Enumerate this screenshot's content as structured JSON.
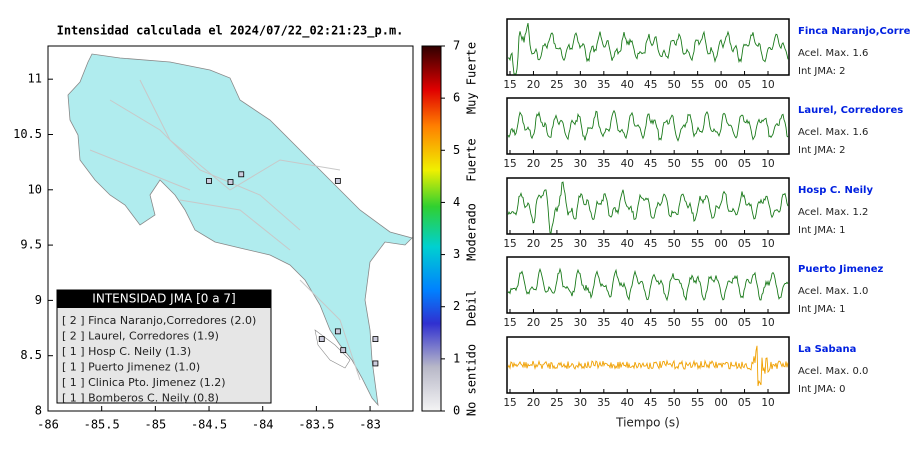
{
  "map": {
    "title": "Intensidad calculada el 2024/07/22_02:21:23_p.m.",
    "xlim": [
      -86,
      -82.6
    ],
    "ylim": [
      8,
      11.3
    ],
    "xticks": [
      -86,
      -85.5,
      -85,
      -84.5,
      -84,
      -83.5,
      -83
    ],
    "yticks": [
      8,
      8.5,
      9,
      9.5,
      10,
      10.5,
      11
    ],
    "stations": [
      {
        "lon": -84.2,
        "lat": 10.14
      },
      {
        "lon": -84.3,
        "lat": 10.07
      },
      {
        "lon": -84.5,
        "lat": 10.08
      },
      {
        "lon": -83.3,
        "lat": 10.08
      },
      {
        "lon": -83.3,
        "lat": 8.72
      },
      {
        "lon": -83.45,
        "lat": 8.65
      },
      {
        "lon": -83.25,
        "lat": 8.55
      },
      {
        "lon": -82.95,
        "lat": 8.65
      },
      {
        "lon": -82.95,
        "lat": 8.43
      }
    ],
    "legend": {
      "title": "INTENSIDAD JMA [0 a 7]",
      "items": [
        "[ 2 ] Finca Naranjo,Corredores (2.0)",
        "[ 2 ] Laurel, Corredores (1.9)",
        "[ 1 ] Hosp C. Neily (1.3)",
        "[ 1 ] Puerto Jimenez (1.0)",
        "[ 1 ] Clinica Pto. Jimenez (1.2)",
        "[ 1 ] Bomberos C. Neily (0.8)"
      ]
    }
  },
  "colorbar": {
    "lim": [
      0,
      7
    ],
    "ticks": [
      0,
      1,
      2,
      3,
      4,
      5,
      6,
      7
    ],
    "classes": [
      "No sentido",
      "Debil",
      "Moderado",
      "Fuerte",
      "Muy Fuerte"
    ]
  },
  "waveforms": {
    "time_labels": [
      "15",
      "20",
      "25",
      "30",
      "35",
      "40",
      "45",
      "50",
      "55",
      "00",
      "05",
      "10"
    ],
    "xlabel": "Tiempo (s)",
    "panels": [
      {
        "name": "Finca Naranjo,Corredores",
        "accel": "Acel. Max. 1.6",
        "int": "Int JMA: 2",
        "color": "#1a7a1a"
      },
      {
        "name": "Laurel, Corredores",
        "accel": "Acel. Max. 1.6",
        "int": "Int JMA: 2",
        "color": "#1a7a1a"
      },
      {
        "name": "Hosp C. Neily",
        "accel": "Acel. Max. 1.2",
        "int": "Int JMA: 1",
        "color": "#1a7a1a"
      },
      {
        "name": "Puerto Jimenez",
        "accel": "Acel. Max. 1.0",
        "int": "Int JMA: 1",
        "color": "#1a7a1a"
      },
      {
        "name": "La Sabana",
        "accel": "Acel. Max. 0.0",
        "int": "Int JMA: 0",
        "color": "#f0a000"
      }
    ]
  }
}
